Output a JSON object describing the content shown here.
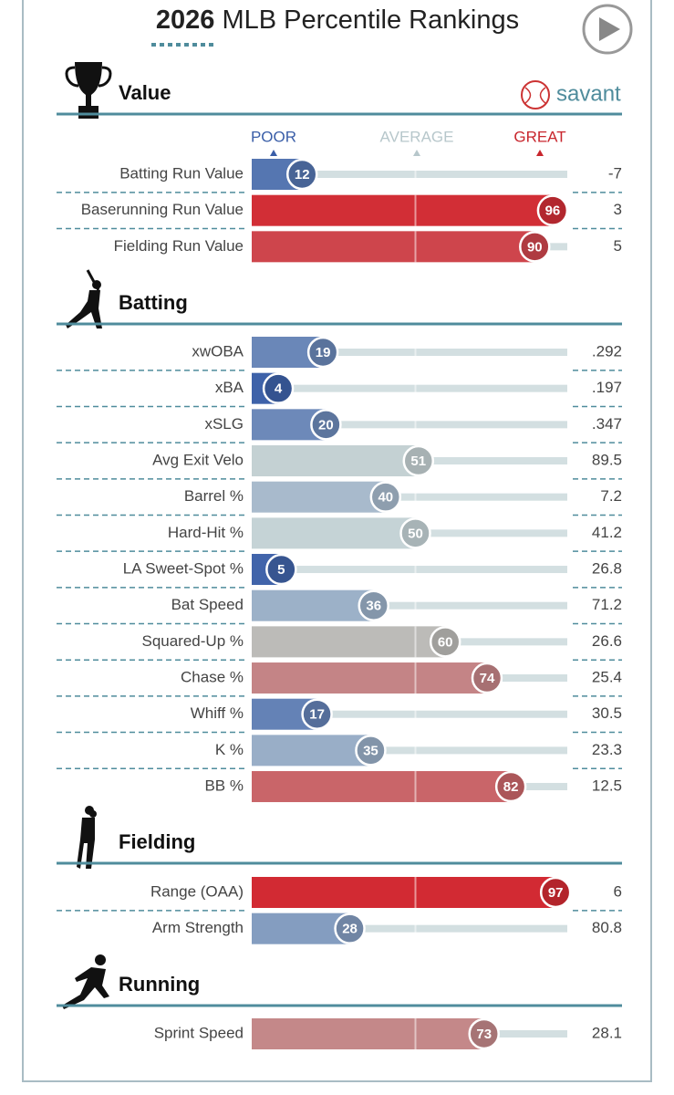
{
  "chart_data": {
    "type": "percentile-bar",
    "title_year": "2026",
    "title": "MLB Percentile Rankings",
    "brand": "savant",
    "scale_labels": [
      "POOR",
      "AVERAGE",
      "GREAT"
    ],
    "xlim": [
      0,
      100
    ],
    "sections": [
      {
        "name": "Value",
        "rows": [
          {
            "label": "Batting Run Value",
            "percentile": 12,
            "stat": "-7"
          },
          {
            "label": "Baserunning Run Value",
            "percentile": 96,
            "stat": "3"
          },
          {
            "label": "Fielding Run Value",
            "percentile": 90,
            "stat": "5"
          }
        ]
      },
      {
        "name": "Batting",
        "rows": [
          {
            "label": "xwOBA",
            "percentile": 19,
            "stat": ".292"
          },
          {
            "label": "xBA",
            "percentile": 4,
            "stat": ".197"
          },
          {
            "label": "xSLG",
            "percentile": 20,
            "stat": ".347"
          },
          {
            "label": "Avg Exit Velo",
            "percentile": 51,
            "stat": "89.5"
          },
          {
            "label": "Barrel %",
            "percentile": 40,
            "stat": "7.2"
          },
          {
            "label": "Hard-Hit %",
            "percentile": 50,
            "stat": "41.2"
          },
          {
            "label": "LA Sweet-Spot %",
            "percentile": 5,
            "stat": "26.8"
          },
          {
            "label": "Bat Speed",
            "percentile": 36,
            "stat": "71.2"
          },
          {
            "label": "Squared-Up %",
            "percentile": 60,
            "stat": "26.6"
          },
          {
            "label": "Chase %",
            "percentile": 74,
            "stat": "25.4"
          },
          {
            "label": "Whiff %",
            "percentile": 17,
            "stat": "30.5"
          },
          {
            "label": "K %",
            "percentile": 35,
            "stat": "23.3"
          },
          {
            "label": "BB %",
            "percentile": 82,
            "stat": "12.5"
          }
        ]
      },
      {
        "name": "Fielding",
        "rows": [
          {
            "label": "Range (OAA)",
            "percentile": 97,
            "stat": "6"
          },
          {
            "label": "Arm Strength",
            "percentile": 28,
            "stat": "80.8"
          }
        ]
      },
      {
        "name": "Running",
        "rows": [
          {
            "label": "Sprint Speed",
            "percentile": 73,
            "stat": "28.1"
          }
        ]
      }
    ]
  }
}
